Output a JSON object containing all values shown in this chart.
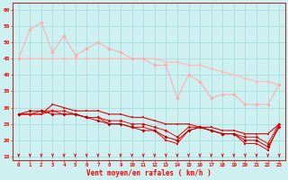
{
  "xlabel": "Vent moyen/en rafales ( km/h )",
  "bg_color": "#cef0f0",
  "grid_color": "#aadddd",
  "x": [
    0,
    1,
    2,
    3,
    4,
    5,
    6,
    7,
    8,
    9,
    10,
    11,
    12,
    13,
    14,
    15,
    16,
    17,
    18,
    19,
    20,
    21,
    22,
    23
  ],
  "line1": [
    45,
    45,
    45,
    45,
    45,
    45,
    45,
    45,
    45,
    45,
    45,
    45,
    45,
    44,
    44,
    43,
    43,
    42,
    41,
    40,
    39,
    38,
    38,
    37
  ],
  "line2": [
    45,
    54,
    56,
    47,
    52,
    46,
    48,
    50,
    48,
    47,
    45,
    45,
    43,
    43,
    33,
    40,
    38,
    33,
    34,
    34,
    31,
    31,
    31,
    37
  ],
  "line3": [
    28,
    28,
    28,
    31,
    30,
    29,
    29,
    29,
    28,
    28,
    27,
    27,
    26,
    25,
    25,
    25,
    24,
    24,
    23,
    23,
    22,
    22,
    22,
    25
  ],
  "line4": [
    28,
    28,
    29,
    29,
    29,
    28,
    27,
    27,
    26,
    26,
    25,
    25,
    24,
    23,
    21,
    24,
    24,
    23,
    22,
    22,
    21,
    21,
    19,
    25
  ],
  "line5": [
    28,
    28,
    28,
    29,
    28,
    28,
    27,
    27,
    25,
    25,
    24,
    24,
    23,
    20,
    19,
    23,
    24,
    23,
    22,
    22,
    19,
    19,
    17,
    25
  ],
  "line6": [
    28,
    29,
    29,
    28,
    28,
    28,
    27,
    26,
    25,
    25,
    24,
    23,
    23,
    21,
    20,
    23,
    24,
    23,
    22,
    22,
    20,
    20,
    18,
    24
  ],
  "line1_color": "#ffbbbb",
  "line2_color": "#ffaaaa",
  "line3_color": "#cc2222",
  "line4_color": "#dd1111",
  "line5_color": "#ff0000",
  "line6_color": "#bb0000",
  "ylim": [
    14,
    62
  ],
  "yticks": [
    15,
    20,
    25,
    30,
    35,
    40,
    45,
    50,
    55,
    60
  ],
  "xticks": [
    0,
    1,
    2,
    3,
    4,
    5,
    6,
    7,
    8,
    9,
    10,
    11,
    12,
    13,
    14,
    15,
    16,
    17,
    18,
    19,
    20,
    21,
    22,
    23
  ],
  "arrow_angles": [
    45,
    45,
    45,
    40,
    40,
    40,
    35,
    35,
    30,
    25,
    20,
    15,
    10,
    5,
    5,
    0,
    0,
    0,
    0,
    0,
    0,
    0,
    0,
    0
  ]
}
